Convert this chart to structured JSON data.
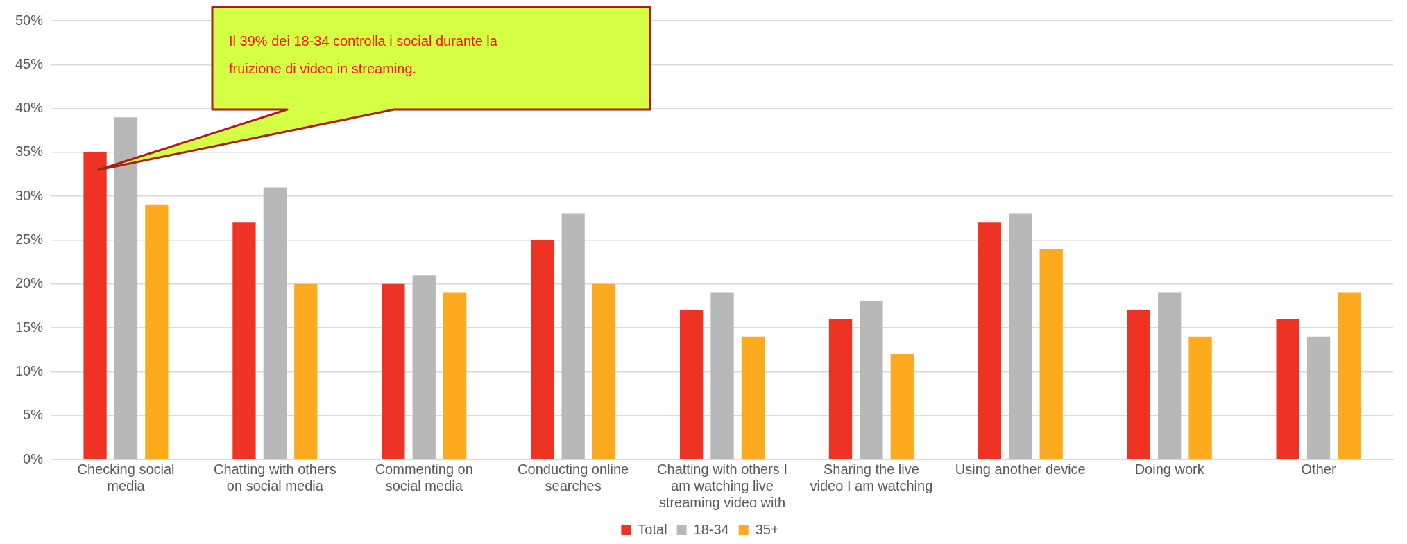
{
  "chart_data": {
    "type": "bar",
    "categories": [
      "Checking social media",
      "Chatting with others on social media",
      "Commenting on social media",
      "Conducting online searches",
      "Chatting with others I am watching live streaming video with",
      "Sharing the live video I am watching",
      "Using another device",
      "Doing work",
      "Other"
    ],
    "series": [
      {
        "name": "Total",
        "color": "#ee3224",
        "values": [
          35,
          27,
          20,
          25,
          17,
          16,
          27,
          17,
          16
        ]
      },
      {
        "name": "18-34",
        "color": "#b8b8b8",
        "values": [
          39,
          31,
          21,
          28,
          19,
          18,
          28,
          19,
          14
        ]
      },
      {
        "name": "35+",
        "color": "#fdaa1f",
        "values": [
          29,
          20,
          19,
          20,
          14,
          12,
          24,
          14,
          19
        ]
      }
    ],
    "ylim": [
      0,
      50
    ],
    "yticks": [
      {
        "value": 0,
        "label": "0%"
      },
      {
        "value": 5,
        "label": "5%"
      },
      {
        "value": 10,
        "label": "10%"
      },
      {
        "value": 15,
        "label": "15%"
      },
      {
        "value": 20,
        "label": "20%"
      },
      {
        "value": 25,
        "label": "25%"
      },
      {
        "value": 30,
        "label": "30%"
      },
      {
        "value": 35,
        "label": "35%"
      },
      {
        "value": 40,
        "label": "40%"
      },
      {
        "value": 45,
        "label": "45%"
      },
      {
        "value": 50,
        "label": "50%"
      }
    ],
    "grid": "y",
    "legend": "bottom",
    "annotations": [
      "Il 39% dei 18-34 controlla i social durante la fruizione di video in streaming."
    ]
  }
}
